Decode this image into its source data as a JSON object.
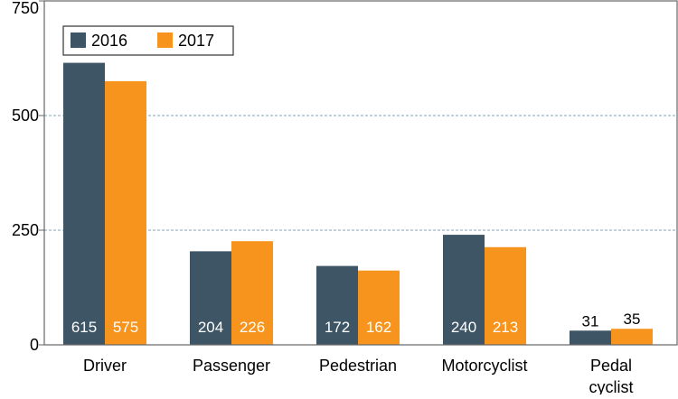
{
  "chart_data": {
    "type": "bar",
    "categories": [
      "Driver",
      "Passenger",
      "Pedestrian",
      "Motorcyclist",
      "Pedal\ncyclist"
    ],
    "series": [
      {
        "name": "2016",
        "values": [
          615,
          204,
          172,
          240,
          31
        ],
        "color": "#3e5566"
      },
      {
        "name": "2017",
        "values": [
          575,
          226,
          162,
          213,
          35
        ],
        "color": "#f7941d"
      }
    ],
    "data_labels": [
      [
        "615",
        "204",
        "172",
        "240",
        "31"
      ],
      [
        "575",
        "226",
        "162",
        "213",
        "35"
      ]
    ],
    "yticks": [
      0,
      250,
      500,
      750
    ],
    "ytick_labels": [
      "0",
      "250",
      "500",
      "750"
    ],
    "ylim": [
      0,
      750
    ],
    "grid": "horizontal dashed",
    "legend_position": "top-left",
    "colors": {
      "grid": "#9fb6c3",
      "frame": "#666666",
      "label_light": "#ffffff",
      "label_dark": "#000000"
    }
  }
}
